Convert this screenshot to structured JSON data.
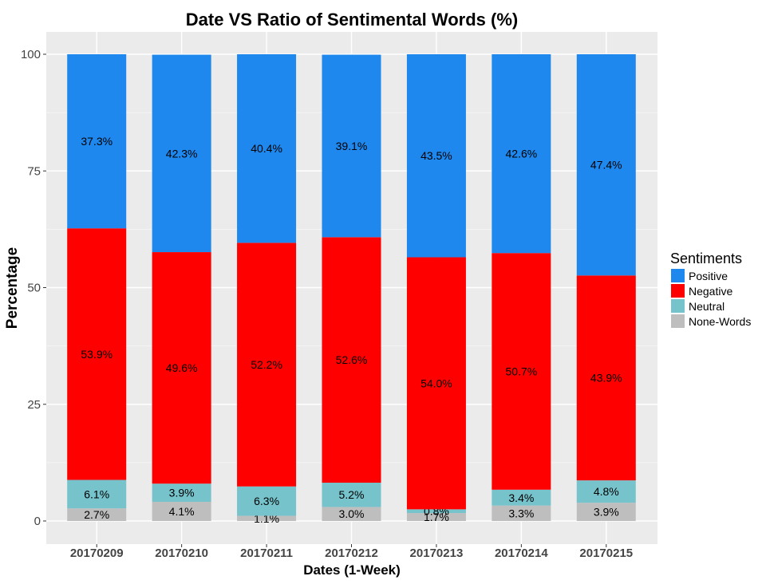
{
  "chart_data": {
    "type": "bar",
    "stacked": true,
    "title": "Date VS Ratio of Sentimental Words (%)",
    "xlabel": "Dates (1-Week)",
    "ylabel": "Percentage",
    "ylim": [
      0,
      100
    ],
    "yticks": [
      0,
      25,
      50,
      75,
      100
    ],
    "grid": true,
    "legend_title": "Sentiments",
    "legend_position": "right",
    "categories": [
      "20170209",
      "20170210",
      "20170211",
      "20170212",
      "20170213",
      "20170214",
      "20170215"
    ],
    "series": [
      {
        "name": "None-Words",
        "color": "#bebebe",
        "values": [
          2.7,
          4.1,
          1.1,
          3.0,
          1.7,
          3.3,
          3.9
        ]
      },
      {
        "name": "Neutral",
        "color": "#76c3cb",
        "values": [
          6.1,
          3.9,
          6.3,
          5.2,
          0.8,
          3.4,
          4.8
        ]
      },
      {
        "name": "Negative",
        "color": "#ff0000",
        "values": [
          53.9,
          49.6,
          52.2,
          52.6,
          54.0,
          50.7,
          43.9
        ]
      },
      {
        "name": "Positive",
        "color": "#1e88ee",
        "values": [
          37.3,
          42.3,
          40.4,
          39.1,
          43.5,
          42.6,
          47.4
        ]
      }
    ],
    "legend_order": [
      "Positive",
      "Negative",
      "Neutral",
      "None-Words"
    ],
    "colors": {
      "panel": "#ebebeb",
      "grid": "#ffffff"
    }
  }
}
